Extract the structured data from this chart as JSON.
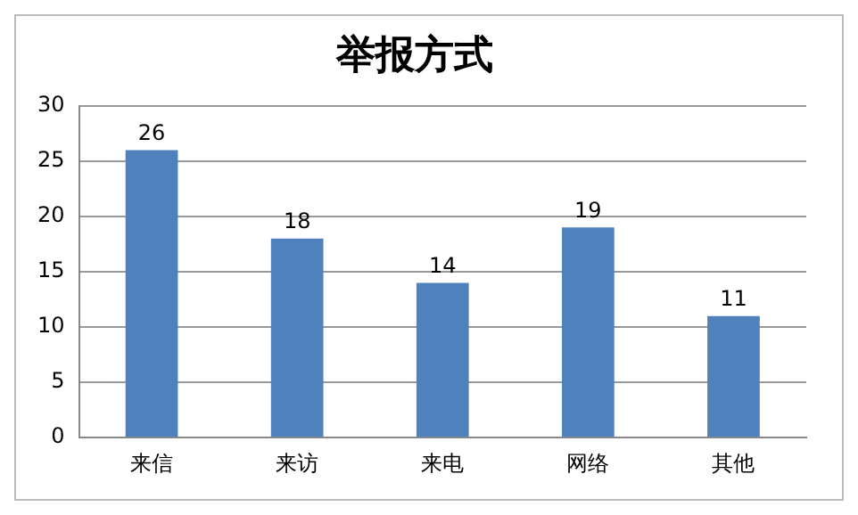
{
  "chart_data": {
    "type": "bar",
    "title": "举报方式",
    "categories": [
      "来信",
      "来访",
      "来电",
      "网络",
      "其他"
    ],
    "values": [
      26,
      18,
      14,
      19,
      11
    ],
    "color": "#4f81bd",
    "ylim": [
      0,
      30
    ],
    "yticks": [
      0,
      5,
      10,
      15,
      20,
      25,
      30
    ],
    "grid": "y",
    "data_labels": true,
    "legend": false
  }
}
